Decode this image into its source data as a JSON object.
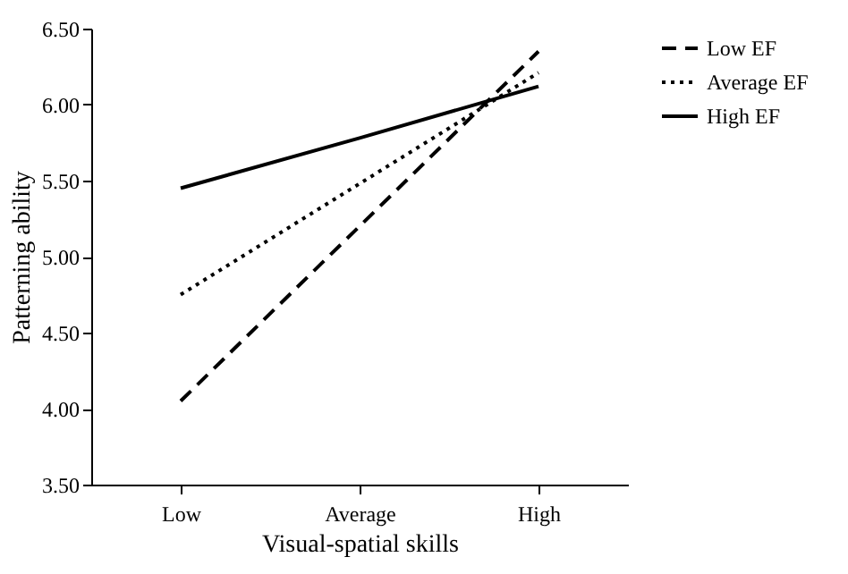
{
  "chart_data": {
    "type": "line",
    "xlabel": "Visual-spatial skills",
    "ylabel": "Patterning ability",
    "categories": [
      "Low",
      "Average",
      "High"
    ],
    "series": [
      {
        "name": "Low EF",
        "color": "#000000",
        "line_style": "dashed",
        "values": [
          4.05,
          5.2,
          6.35
        ]
      },
      {
        "name": "Average EF",
        "color": "#000000",
        "line_style": "dotted",
        "values": [
          4.75,
          5.48,
          6.21
        ]
      },
      {
        "name": "High EF",
        "color": "#000000",
        "line_style": "solid",
        "values": [
          5.45,
          5.78,
          6.12
        ]
      }
    ],
    "ylim": [
      3.5,
      6.5
    ],
    "yticks": [
      {
        "value": 3.5,
        "label": "3.50"
      },
      {
        "value": 4,
        "label": "4.00"
      },
      {
        "value": 4.5,
        "label": "4.50"
      },
      {
        "value": 5,
        "label": "5.00"
      },
      {
        "value": 5.5,
        "label": "5.50"
      },
      {
        "value": 6,
        "label": "6.00"
      },
      {
        "value": 6.5,
        "label": "6.50"
      }
    ],
    "grid": false,
    "legend": "right",
    "marker": "none"
  }
}
